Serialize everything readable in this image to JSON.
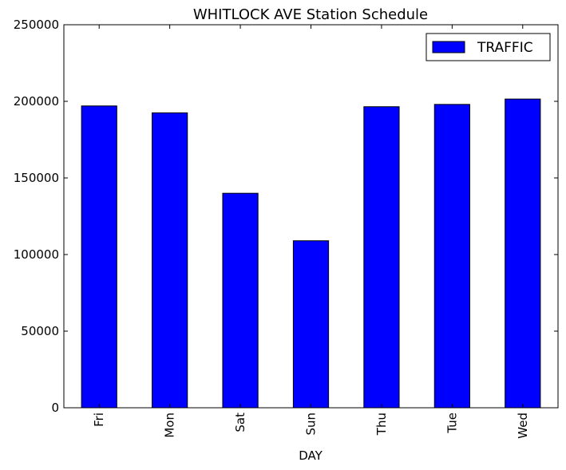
{
  "chart_data": {
    "type": "bar",
    "title": "WHITLOCK AVE Station Schedule",
    "xlabel": "DAY",
    "ylabel": "",
    "categories": [
      "Fri",
      "Mon",
      "Sat",
      "Sun",
      "Thu",
      "Tue",
      "Wed"
    ],
    "series": [
      {
        "name": "TRAFFIC",
        "color": "#0000ff",
        "values": [
          197000,
          192500,
          140000,
          109000,
          196500,
          198000,
          201500
        ]
      }
    ],
    "ylim": [
      0,
      250000
    ],
    "yticks": [
      0,
      50000,
      100000,
      150000,
      200000,
      250000
    ],
    "ytick_labels": [
      "0",
      "50000",
      "100000",
      "150000",
      "200000",
      "250000"
    ],
    "grid": false,
    "legend_position": "top-right",
    "xtick_rotation": "vertical"
  }
}
